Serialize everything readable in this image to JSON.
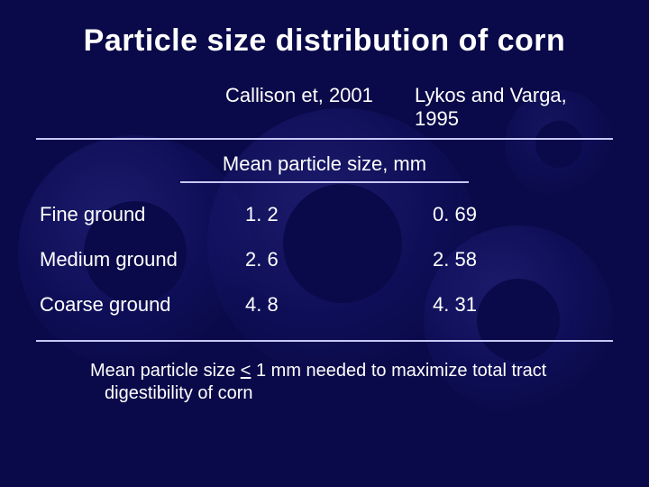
{
  "colors": {
    "background": "#0a0a4a",
    "text": "#ffffff",
    "rule": "#c7c7f5",
    "gear_light": "#2a2a88",
    "gear_mid": "#141466"
  },
  "typography": {
    "family": "Comic Sans MS",
    "title_size_pt": 34,
    "body_size_pt": 22,
    "footnote_size_pt": 20
  },
  "title": "Particle size distribution of corn",
  "studies": {
    "col1": "Callison et, 2001",
    "col2": "Lykos and Varga, 1995"
  },
  "subheader": "Mean particle size, mm",
  "table": {
    "rows": [
      {
        "label": "Fine ground",
        "v1": "1. 2",
        "v2": "0. 69"
      },
      {
        "label": "Medium ground",
        "v1": "2. 6",
        "v2": "2. 58"
      },
      {
        "label": "Coarse ground",
        "v1": "4. 8",
        "v2": "4. 31"
      }
    ]
  },
  "footnote": {
    "pre": "Mean particle size ",
    "op": "<",
    "post": " 1 mm needed to maximize total tract digestibility of corn"
  }
}
